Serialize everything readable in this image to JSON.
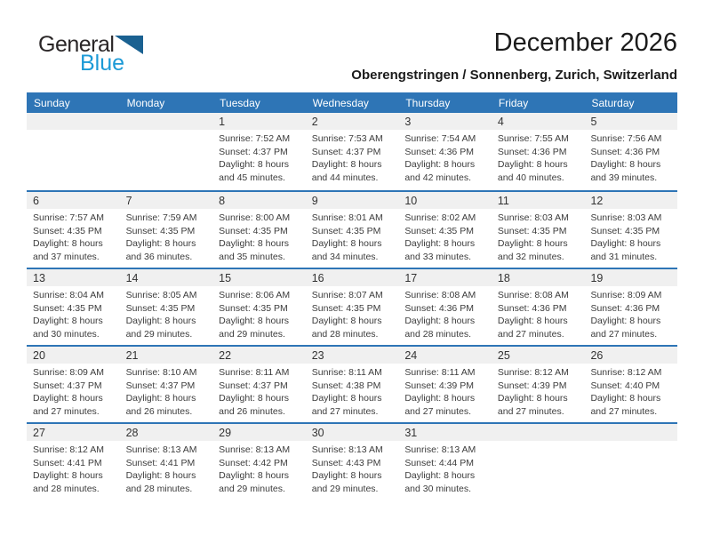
{
  "logo": {
    "part1": "General",
    "part2": "Blue"
  },
  "header": {
    "title": "December 2026",
    "subtitle": "Oberengstringen / Sonnenberg, Zurich, Switzerland"
  },
  "colors": {
    "header_bar": "#2e75b6",
    "row_divider": "#2e75b6",
    "day_strip": "#f0f0f0",
    "logo_blue": "#1c9ad6",
    "logo_triangle": "#1a6191"
  },
  "calendar": {
    "weekday_headers": [
      "Sunday",
      "Monday",
      "Tuesday",
      "Wednesday",
      "Thursday",
      "Friday",
      "Saturday"
    ],
    "weeks": [
      {
        "cells": [
          {
            "day": null
          },
          {
            "day": null
          },
          {
            "day": "1",
            "sunrise": "Sunrise: 7:52 AM",
            "sunset": "Sunset: 4:37 PM",
            "daylight": "Daylight: 8 hours and 45 minutes."
          },
          {
            "day": "2",
            "sunrise": "Sunrise: 7:53 AM",
            "sunset": "Sunset: 4:37 PM",
            "daylight": "Daylight: 8 hours and 44 minutes."
          },
          {
            "day": "3",
            "sunrise": "Sunrise: 7:54 AM",
            "sunset": "Sunset: 4:36 PM",
            "daylight": "Daylight: 8 hours and 42 minutes."
          },
          {
            "day": "4",
            "sunrise": "Sunrise: 7:55 AM",
            "sunset": "Sunset: 4:36 PM",
            "daylight": "Daylight: 8 hours and 40 minutes."
          },
          {
            "day": "5",
            "sunrise": "Sunrise: 7:56 AM",
            "sunset": "Sunset: 4:36 PM",
            "daylight": "Daylight: 8 hours and 39 minutes."
          }
        ]
      },
      {
        "cells": [
          {
            "day": "6",
            "sunrise": "Sunrise: 7:57 AM",
            "sunset": "Sunset: 4:35 PM",
            "daylight": "Daylight: 8 hours and 37 minutes."
          },
          {
            "day": "7",
            "sunrise": "Sunrise: 7:59 AM",
            "sunset": "Sunset: 4:35 PM",
            "daylight": "Daylight: 8 hours and 36 minutes."
          },
          {
            "day": "8",
            "sunrise": "Sunrise: 8:00 AM",
            "sunset": "Sunset: 4:35 PM",
            "daylight": "Daylight: 8 hours and 35 minutes."
          },
          {
            "day": "9",
            "sunrise": "Sunrise: 8:01 AM",
            "sunset": "Sunset: 4:35 PM",
            "daylight": "Daylight: 8 hours and 34 minutes."
          },
          {
            "day": "10",
            "sunrise": "Sunrise: 8:02 AM",
            "sunset": "Sunset: 4:35 PM",
            "daylight": "Daylight: 8 hours and 33 minutes."
          },
          {
            "day": "11",
            "sunrise": "Sunrise: 8:03 AM",
            "sunset": "Sunset: 4:35 PM",
            "daylight": "Daylight: 8 hours and 32 minutes."
          },
          {
            "day": "12",
            "sunrise": "Sunrise: 8:03 AM",
            "sunset": "Sunset: 4:35 PM",
            "daylight": "Daylight: 8 hours and 31 minutes."
          }
        ]
      },
      {
        "cells": [
          {
            "day": "13",
            "sunrise": "Sunrise: 8:04 AM",
            "sunset": "Sunset: 4:35 PM",
            "daylight": "Daylight: 8 hours and 30 minutes."
          },
          {
            "day": "14",
            "sunrise": "Sunrise: 8:05 AM",
            "sunset": "Sunset: 4:35 PM",
            "daylight": "Daylight: 8 hours and 29 minutes."
          },
          {
            "day": "15",
            "sunrise": "Sunrise: 8:06 AM",
            "sunset": "Sunset: 4:35 PM",
            "daylight": "Daylight: 8 hours and 29 minutes."
          },
          {
            "day": "16",
            "sunrise": "Sunrise: 8:07 AM",
            "sunset": "Sunset: 4:35 PM",
            "daylight": "Daylight: 8 hours and 28 minutes."
          },
          {
            "day": "17",
            "sunrise": "Sunrise: 8:08 AM",
            "sunset": "Sunset: 4:36 PM",
            "daylight": "Daylight: 8 hours and 28 minutes."
          },
          {
            "day": "18",
            "sunrise": "Sunrise: 8:08 AM",
            "sunset": "Sunset: 4:36 PM",
            "daylight": "Daylight: 8 hours and 27 minutes."
          },
          {
            "day": "19",
            "sunrise": "Sunrise: 8:09 AM",
            "sunset": "Sunset: 4:36 PM",
            "daylight": "Daylight: 8 hours and 27 minutes."
          }
        ]
      },
      {
        "cells": [
          {
            "day": "20",
            "sunrise": "Sunrise: 8:09 AM",
            "sunset": "Sunset: 4:37 PM",
            "daylight": "Daylight: 8 hours and 27 minutes."
          },
          {
            "day": "21",
            "sunrise": "Sunrise: 8:10 AM",
            "sunset": "Sunset: 4:37 PM",
            "daylight": "Daylight: 8 hours and 26 minutes."
          },
          {
            "day": "22",
            "sunrise": "Sunrise: 8:11 AM",
            "sunset": "Sunset: 4:37 PM",
            "daylight": "Daylight: 8 hours and 26 minutes."
          },
          {
            "day": "23",
            "sunrise": "Sunrise: 8:11 AM",
            "sunset": "Sunset: 4:38 PM",
            "daylight": "Daylight: 8 hours and 27 minutes."
          },
          {
            "day": "24",
            "sunrise": "Sunrise: 8:11 AM",
            "sunset": "Sunset: 4:39 PM",
            "daylight": "Daylight: 8 hours and 27 minutes."
          },
          {
            "day": "25",
            "sunrise": "Sunrise: 8:12 AM",
            "sunset": "Sunset: 4:39 PM",
            "daylight": "Daylight: 8 hours and 27 minutes."
          },
          {
            "day": "26",
            "sunrise": "Sunrise: 8:12 AM",
            "sunset": "Sunset: 4:40 PM",
            "daylight": "Daylight: 8 hours and 27 minutes."
          }
        ]
      },
      {
        "cells": [
          {
            "day": "27",
            "sunrise": "Sunrise: 8:12 AM",
            "sunset": "Sunset: 4:41 PM",
            "daylight": "Daylight: 8 hours and 28 minutes."
          },
          {
            "day": "28",
            "sunrise": "Sunrise: 8:13 AM",
            "sunset": "Sunset: 4:41 PM",
            "daylight": "Daylight: 8 hours and 28 minutes."
          },
          {
            "day": "29",
            "sunrise": "Sunrise: 8:13 AM",
            "sunset": "Sunset: 4:42 PM",
            "daylight": "Daylight: 8 hours and 29 minutes."
          },
          {
            "day": "30",
            "sunrise": "Sunrise: 8:13 AM",
            "sunset": "Sunset: 4:43 PM",
            "daylight": "Daylight: 8 hours and 29 minutes."
          },
          {
            "day": "31",
            "sunrise": "Sunrise: 8:13 AM",
            "sunset": "Sunset: 4:44 PM",
            "daylight": "Daylight: 8 hours and 30 minutes."
          },
          {
            "day": null
          },
          {
            "day": null
          }
        ]
      }
    ]
  }
}
